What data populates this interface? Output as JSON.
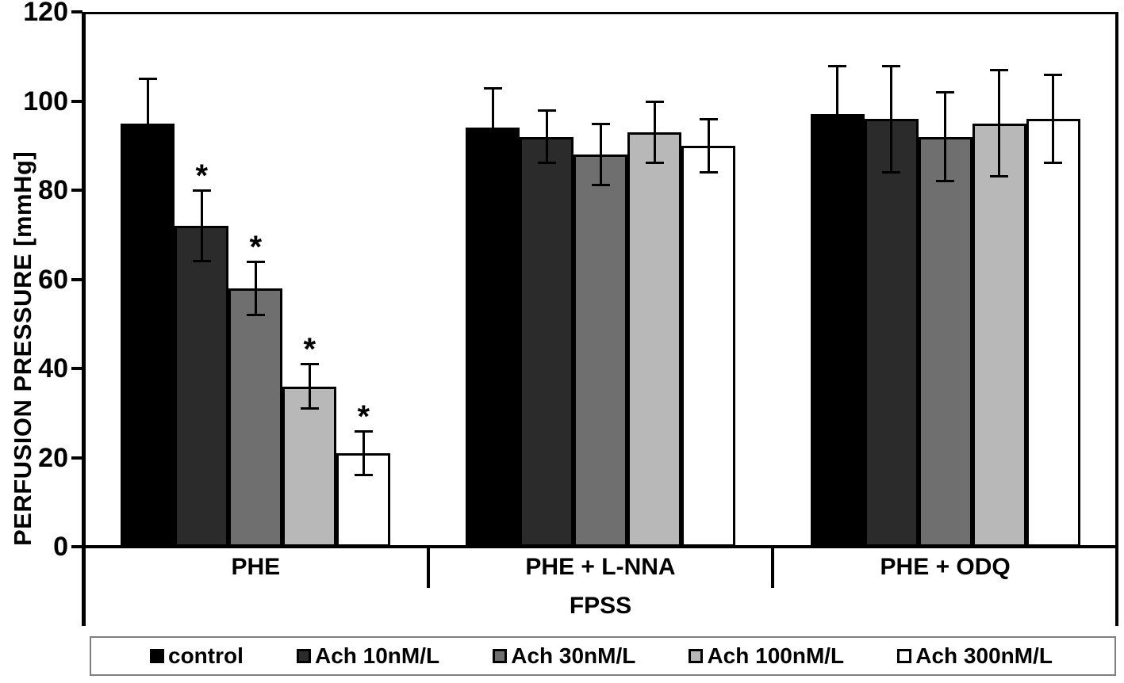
{
  "chart_data": {
    "type": "bar",
    "title": "",
    "ylabel": "PERFUSION PRESSURE [mmHg]",
    "xlabel": "FPSS",
    "ylim": [
      0,
      120
    ],
    "yticks": [
      0,
      20,
      40,
      60,
      80,
      100,
      120
    ],
    "grid": false,
    "legend_position": "bottom",
    "categories": [
      "PHE",
      "PHE + L-NNA",
      "PHE + ODQ"
    ],
    "significance_marker": "*",
    "series": [
      {
        "name": "control",
        "color": "#000000",
        "values": [
          95,
          94,
          97
        ],
        "errors": [
          10,
          9,
          11
        ],
        "sig": [
          false,
          false,
          false
        ]
      },
      {
        "name": "Ach 10nM/L",
        "color": "#2b2b2b",
        "values": [
          72,
          92,
          96
        ],
        "errors": [
          8,
          6,
          12
        ],
        "sig": [
          true,
          false,
          false
        ]
      },
      {
        "name": "Ach 30nM/L",
        "color": "#6f6f6f",
        "values": [
          58,
          88,
          92
        ],
        "errors": [
          6,
          7,
          10
        ],
        "sig": [
          true,
          false,
          false
        ]
      },
      {
        "name": "Ach 100nM/L",
        "color": "#b8b8b8",
        "values": [
          36,
          93,
          95
        ],
        "errors": [
          5,
          7,
          12
        ],
        "sig": [
          true,
          false,
          false
        ]
      },
      {
        "name": "Ach 300nM/L",
        "color": "#ffffff",
        "values": [
          21,
          90,
          96
        ],
        "errors": [
          5,
          6,
          10
        ],
        "sig": [
          true,
          false,
          false
        ]
      }
    ],
    "colors": {
      "axis": "#000000",
      "legend_border": "#7f7f7f",
      "background": "#ffffff"
    }
  }
}
